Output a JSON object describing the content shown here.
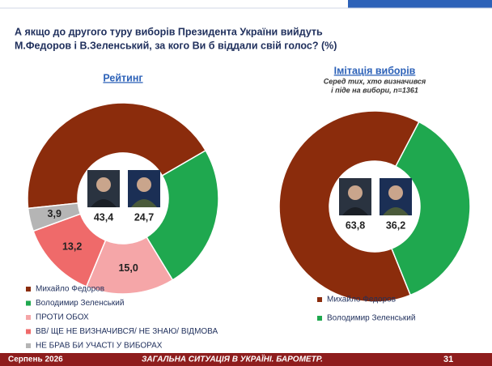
{
  "title": [
    "А якщо до другого туру виборів Президента України вийдуть",
    "М.Федоров і В.Зеленський, за кого Ви б віддали свій голос? (%)"
  ],
  "footer": {
    "date": "Серпень 2026",
    "text": "ЗАГАЛЬНА СИТУАЦІЯ В УКРАЇНІ. БАРОМЕТР.",
    "page": 31
  },
  "chart_data": [
    {
      "type": "pie",
      "title": "Рейтинг",
      "categories": [
        "Михайло Федоров",
        "Володимир Зеленський",
        "ПРОТИ ОБОХ",
        "ВВ/ ЩЕ НЕ ВИЗНАЧИВСЯ/ НЕ ЗНАЮ/ ВІДМОВА",
        "НЕ БРАВ БИ УЧАСТІ У ВИБОРАХ"
      ],
      "values": [
        43.4,
        24.7,
        15.0,
        13.2,
        3.9
      ],
      "value_labels": [
        "43,4",
        "24,7",
        "15,0",
        "13,2",
        "3,9"
      ],
      "colors": [
        "#8b2c0c",
        "#1fa84f",
        "#f5a6a8",
        "#ef6a6a",
        "#b5b5b5"
      ]
    },
    {
      "type": "pie",
      "title": "Імітація виборів",
      "subtitle": [
        "Серед тих, хто визначився",
        "і піде на вибори, n=1361"
      ],
      "categories": [
        "Михайло Федоров",
        "Володимир Зеленський"
      ],
      "values": [
        63.8,
        36.2
      ],
      "value_labels": [
        "63,8",
        "36,2"
      ],
      "colors": [
        "#8b2c0c",
        "#1fa84f"
      ]
    }
  ]
}
